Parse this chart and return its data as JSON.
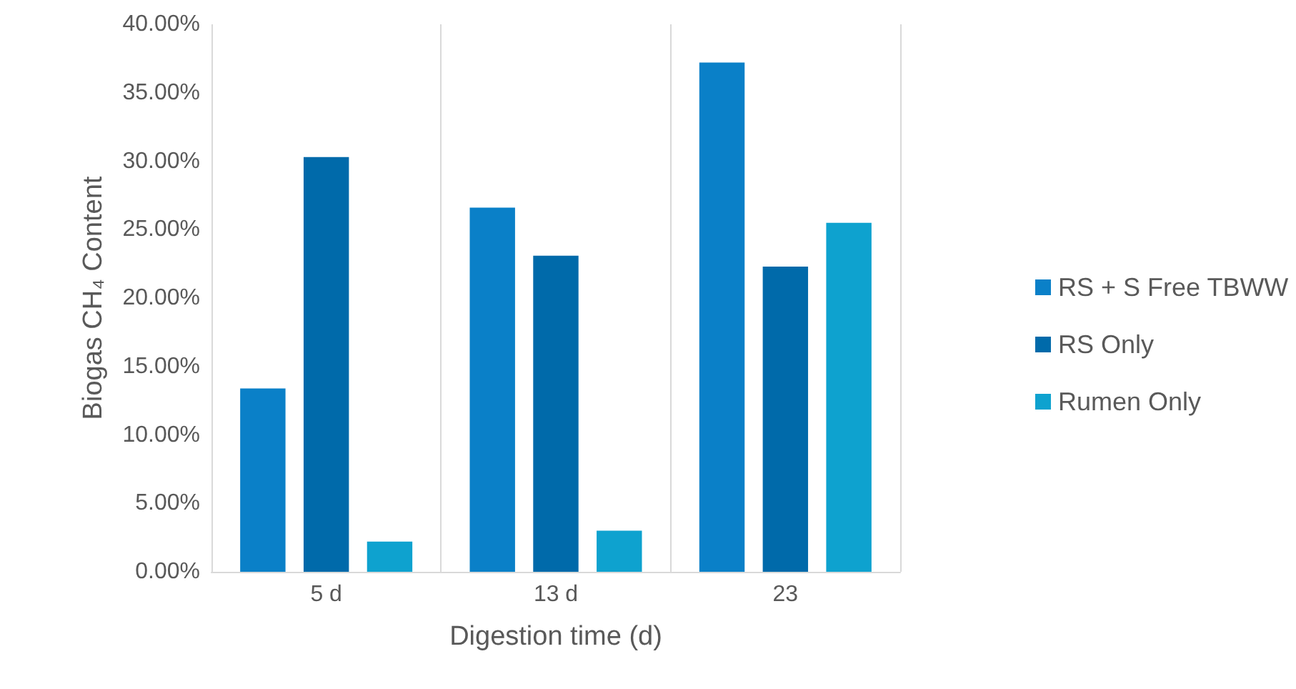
{
  "chart_data": {
    "type": "bar",
    "xlabel": "Digestion time (d)",
    "ylabel": "Biogas CH₄ Content",
    "categories": [
      "5 d",
      "13 d",
      "23"
    ],
    "series": [
      {
        "name": "RS + S Free TBWW",
        "color": "#0a80c8",
        "values": [
          13.4,
          26.6,
          37.2
        ]
      },
      {
        "name": "RS Only",
        "color": "#006aaa",
        "values": [
          30.3,
          23.1,
          22.3
        ]
      },
      {
        "name": "Rumen Only",
        "color": "#0ea2cf",
        "values": [
          2.2,
          3.0,
          25.5
        ]
      }
    ],
    "ylim": [
      0,
      40
    ],
    "yticks": [
      {
        "value": 0,
        "label": "0.00%"
      },
      {
        "value": 5,
        "label": "5.00%"
      },
      {
        "value": 10,
        "label": "10.00%"
      },
      {
        "value": 15,
        "label": "15.00%"
      },
      {
        "value": 20,
        "label": "20.00%"
      },
      {
        "value": 25,
        "label": "25.00%"
      },
      {
        "value": 30,
        "label": "30.00%"
      },
      {
        "value": 35,
        "label": "35.00%"
      },
      {
        "value": 40,
        "label": "40.00%"
      }
    ],
    "grid": "x",
    "legend": "right"
  }
}
